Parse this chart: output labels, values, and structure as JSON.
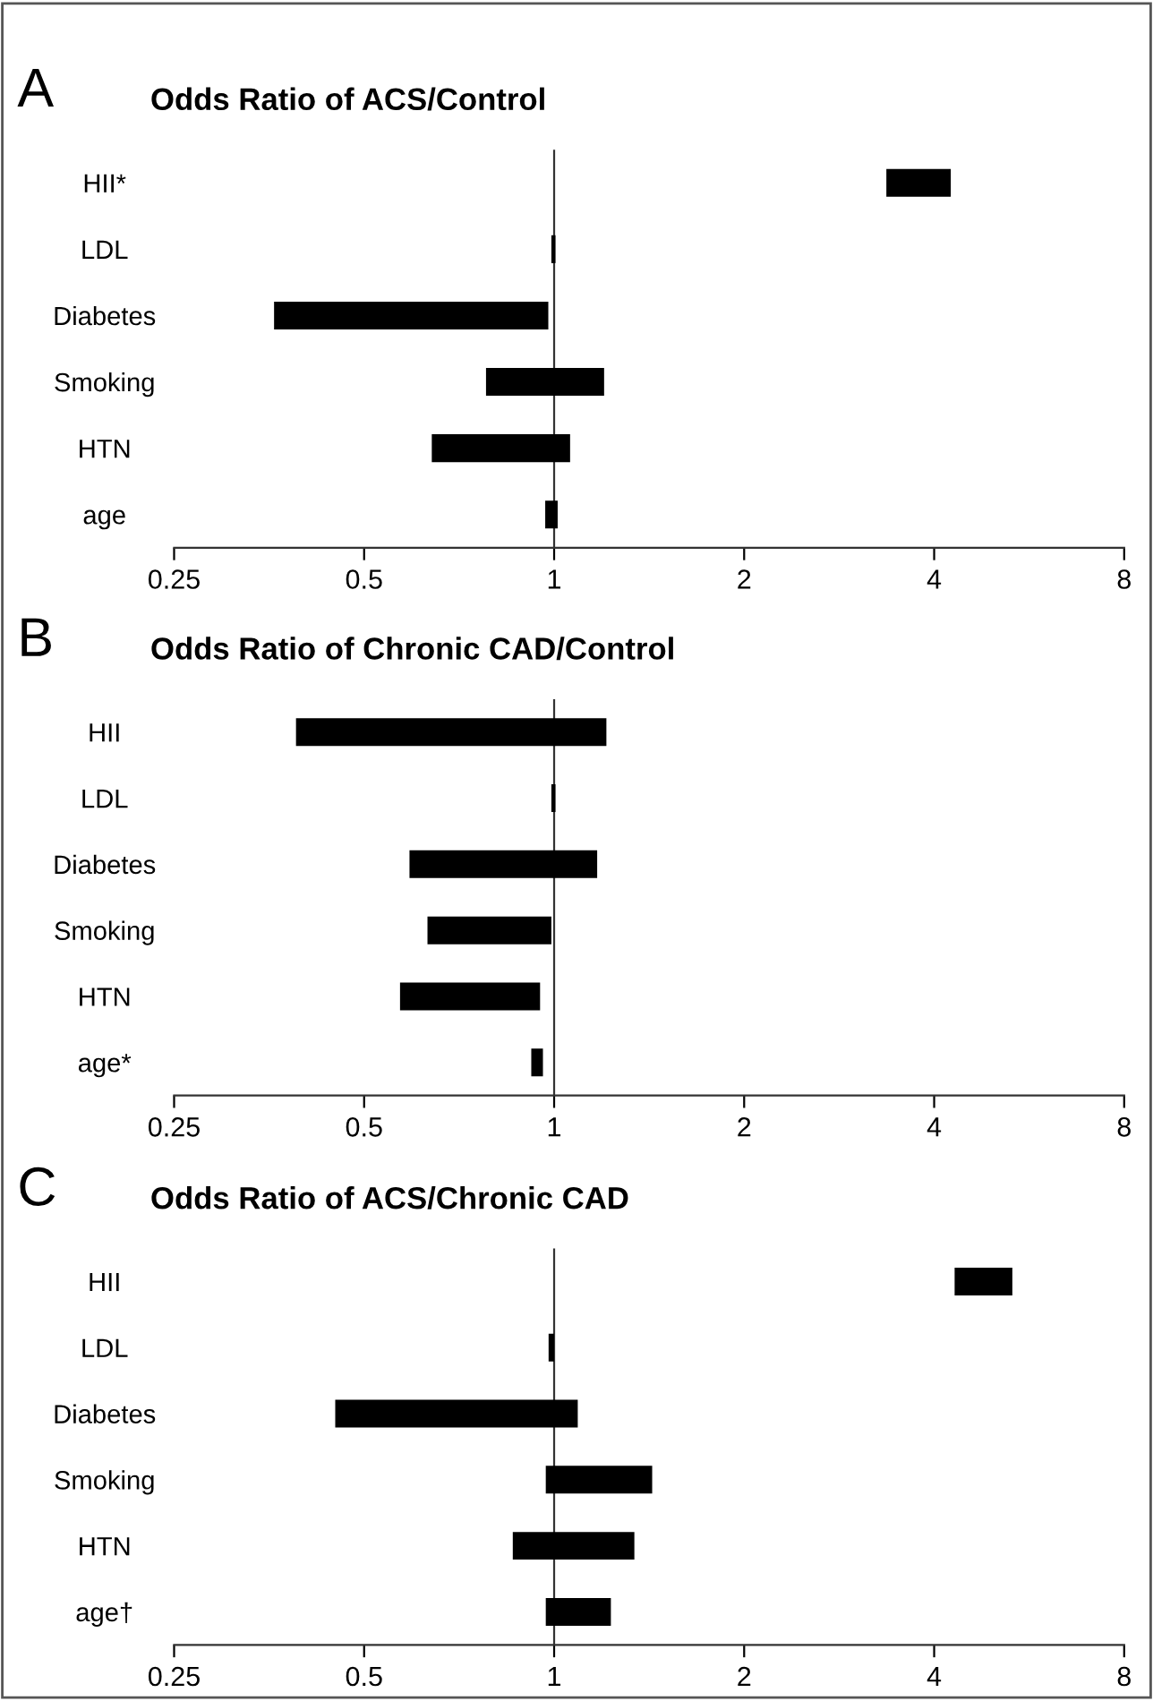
{
  "chart_data": [
    {
      "type": "bar",
      "orientation": "horizontal",
      "log": "x",
      "title": "Odds Ratio of ACS/Control",
      "annotations": [
        "A"
      ],
      "categories": [
        "HII*",
        "LDL",
        "Diabetes",
        "Smoking",
        "HTN",
        "age"
      ],
      "base": [
        3.36,
        0.99,
        0.36,
        0.78,
        0.64,
        0.968
      ],
      "values": [
        0.89,
        0.015,
        0.619,
        0.42,
        0.42,
        0.045
      ],
      "color": "#000000",
      "xlim": [
        0.25,
        8
      ],
      "xticks": [
        0.25,
        0.5,
        1,
        2,
        4,
        8
      ],
      "ref_lines": [
        {
          "axis": "x",
          "value": 1,
          "color": "#333333"
        }
      ],
      "grid": false,
      "legend": false
    },
    {
      "type": "bar",
      "orientation": "horizontal",
      "log": "x",
      "title": "Odds Ratio of Chronic CAD/Control",
      "annotations": [
        "B"
      ],
      "categories": [
        "HII",
        "LDL",
        "Diabetes",
        "Smoking",
        "HTN",
        "age*"
      ],
      "base": [
        0.39,
        0.99,
        0.59,
        0.63,
        0.57,
        0.92
      ],
      "values": [
        0.82,
        0.015,
        0.58,
        0.36,
        0.38,
        0.04
      ],
      "color": "#000000",
      "xlim": [
        0.25,
        8
      ],
      "xticks": [
        0.25,
        0.5,
        1,
        2,
        4,
        8
      ],
      "ref_lines": [
        {
          "axis": "x",
          "value": 1,
          "color": "#333333"
        }
      ],
      "grid": false,
      "legend": false
    },
    {
      "type": "bar",
      "orientation": "horizontal",
      "log": "x",
      "title": "Odds Ratio of ACS/Chronic CAD",
      "annotations": [
        "C"
      ],
      "categories": [
        "HII",
        "LDL",
        "Diabetes",
        "Smoking",
        "HTN",
        "age†"
      ],
      "base": [
        4.31,
        0.98,
        0.45,
        0.97,
        0.86,
        0.97
      ],
      "values": [
        1.01,
        0.02,
        0.64,
        0.46,
        0.48,
        0.26
      ],
      "color": "#000000",
      "xlim": [
        0.25,
        8
      ],
      "xticks": [
        0.25,
        0.5,
        1,
        2,
        4,
        8
      ],
      "ref_lines": [
        {
          "axis": "x",
          "value": 1,
          "color": "#333333"
        }
      ],
      "grid": false,
      "legend": false
    }
  ]
}
